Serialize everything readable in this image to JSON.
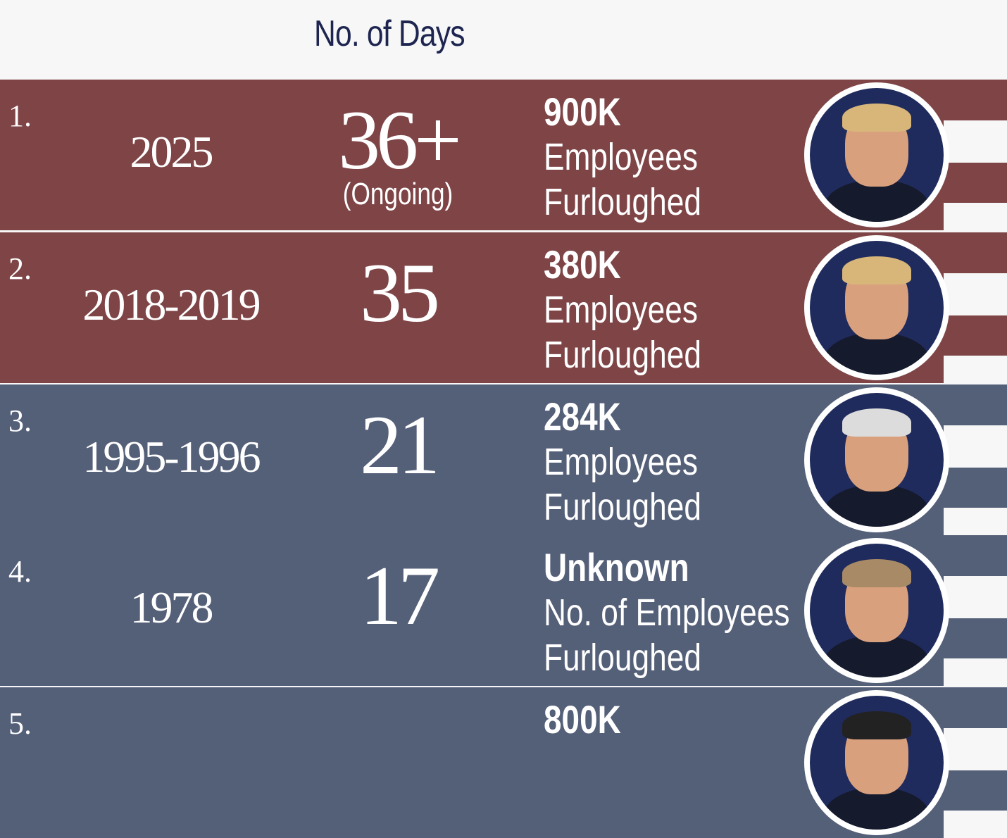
{
  "header": {
    "title": "No. of Days"
  },
  "rows": [
    {
      "rank": "1.",
      "years": "2025",
      "days": "36+",
      "note": "(Ongoing)",
      "count": "900K",
      "line1": "Employees",
      "line2": "Furloughed",
      "color": "red",
      "hair": "#d8b67a"
    },
    {
      "rank": "2.",
      "years": "2018-2019",
      "days": "35",
      "note": "",
      "count": "380K",
      "line1": "Employees",
      "line2": "Furloughed",
      "color": "red",
      "hair": "#d8b67a"
    },
    {
      "rank": "3.",
      "years": "1995-1996",
      "days": "21",
      "note": "",
      "count": "284K",
      "line1": "Employees",
      "line2": "Furloughed",
      "color": "blue",
      "hair": "#dcdcdc"
    },
    {
      "rank": "4.",
      "years": "1978",
      "days": "17",
      "note": "",
      "count": "Unknown",
      "line1": "No. of Employees",
      "line2": "Furloughed",
      "color": "blue",
      "hair": "#a88a66"
    },
    {
      "rank": "5.",
      "years": "",
      "days": "",
      "note": "",
      "count": "800K",
      "line1": "",
      "line2": "",
      "color": "blue",
      "hair": "#222"
    }
  ],
  "colors": {
    "red": "#7e4446",
    "blue": "#545f78",
    "navy": "#1f2b5c",
    "title": "#1d2550"
  }
}
